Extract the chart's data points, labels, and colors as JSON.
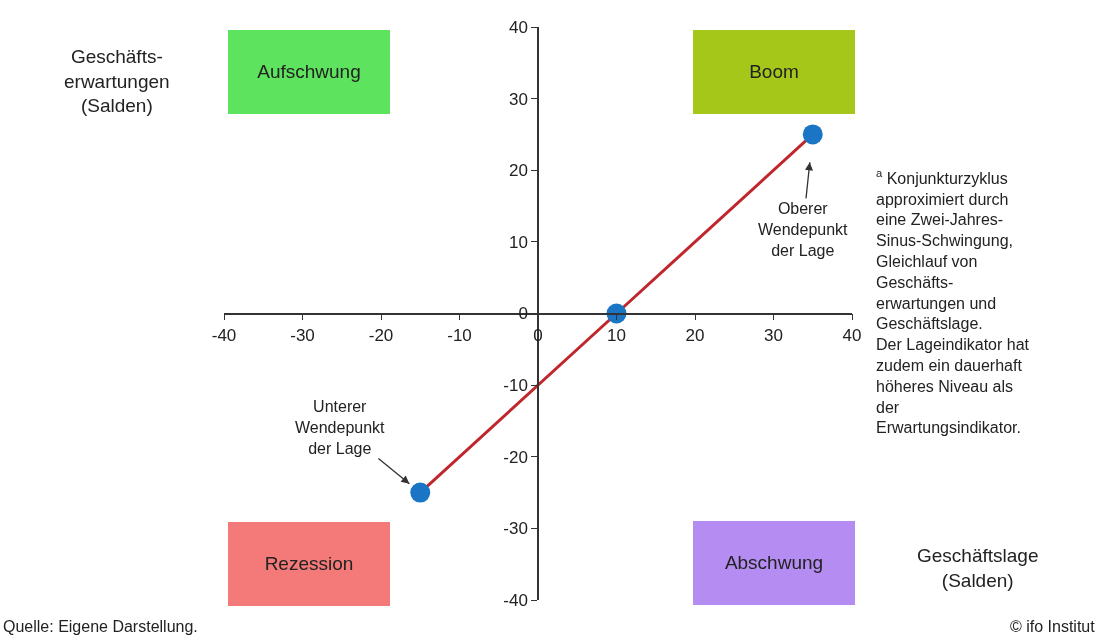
{
  "chart_data": {
    "type": "line",
    "xlabel": "Geschäftslage\n(Salden)",
    "ylabel": "Geschäfts-\nerwartungen\n(Salden)",
    "x": [
      -15,
      10,
      35
    ],
    "series": [
      {
        "color": "#c0272d",
        "colors": [
          "#1a75c4",
          "#1a75c4",
          "#1a75c4"
        ],
        "values": [
          -25,
          0,
          25
        ]
      }
    ],
    "marker": "circle",
    "line_style": "solid",
    "grid": false,
    "legend": false,
    "xlim": [
      -40,
      40
    ],
    "xticks": [
      -40,
      -30,
      -20,
      -10,
      0,
      10,
      20,
      30,
      40
    ],
    "ylim": [
      -40,
      40
    ],
    "yticks": [
      -40,
      -30,
      -20,
      -10,
      0,
      10,
      20,
      30,
      40
    ],
    "annotations": [
      "Aufschwung",
      "Boom",
      "Rezession",
      "Abschwung",
      {
        "text": "Oberer\nWendepunkt\nder Lage",
        "x": 35,
        "y": 25
      },
      {
        "text": "Unterer\nWendepunkt\nder Lage",
        "x": -15,
        "y": -25
      },
      "$^{a}$ Konjunkturzyklus\napproximiert durch\neine Zwei-Jahres-\nSinus-Schwingung,\nGleichlauf von\nGeschäfts-\nerwartungen und\nGeschäftslage.\nDer Lageindikator hat\nzudem ein dauerhaft\nhöheres Niveau als\nder\nErwartungsindikator.",
      "Quelle: Eigene Darstellung.",
      "© ifo Institut"
    ]
  }
}
